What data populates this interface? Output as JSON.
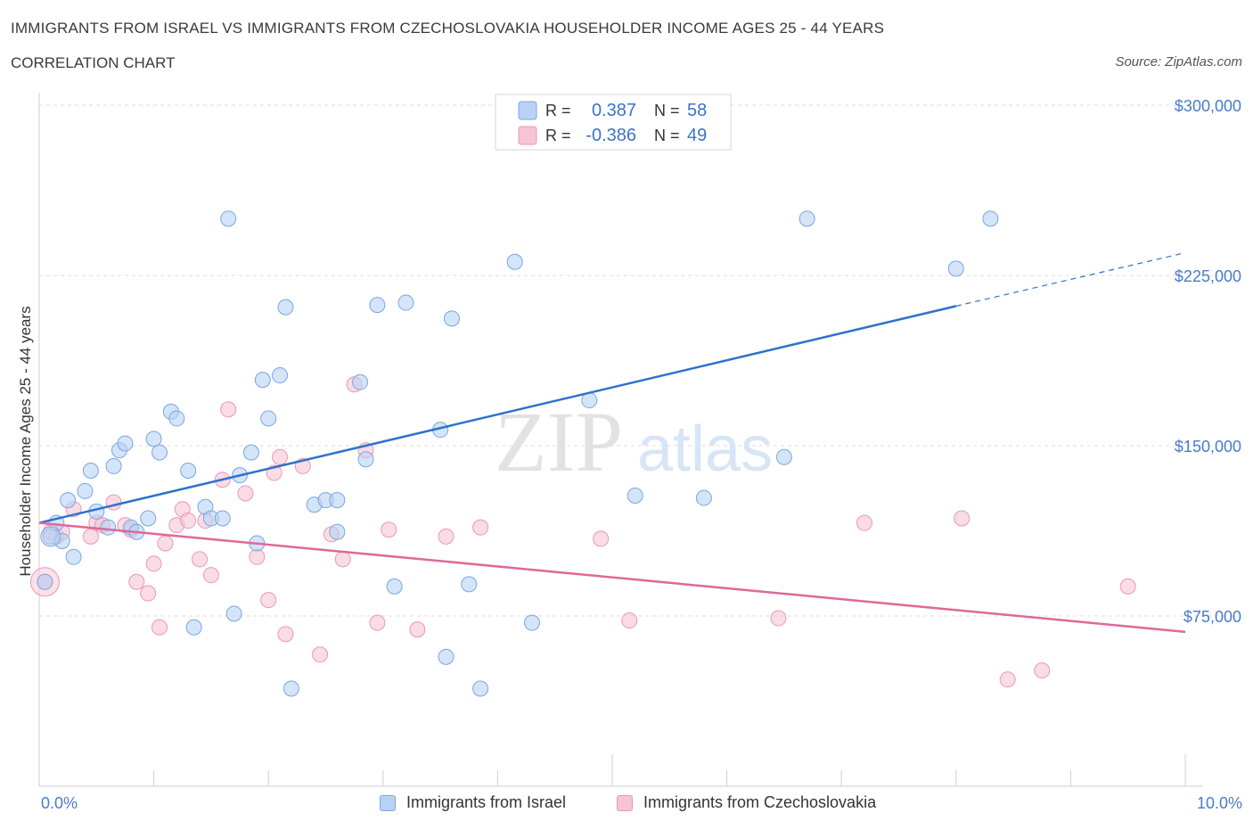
{
  "header": {
    "title": "IMMIGRANTS FROM ISRAEL VS IMMIGRANTS FROM CZECHOSLOVAKIA HOUSEHOLDER INCOME AGES 25 - 44 YEARS",
    "subtitle": "CORRELATION CHART",
    "source": "Source: ZipAtlas.com"
  },
  "watermark": {
    "zip": "ZIP",
    "atlas": "atlas"
  },
  "legend_top": {
    "rows": [
      {
        "r_label": "R =",
        "r_value": "0.387",
        "n_label": "N =",
        "n_value": "58"
      },
      {
        "r_label": "R =",
        "r_value": "-0.386",
        "n_label": "N =",
        "n_value": "49"
      }
    ]
  },
  "legend_bottom": {
    "items": [
      {
        "label": "Immigrants from Israel"
      },
      {
        "label": "Immigrants from Czechoslovakia"
      }
    ]
  },
  "colors": {
    "israel_fill": "#b8d2f5",
    "israel_stroke": "#7aa6e0",
    "israel_line": "#2e72cc",
    "czech_fill": "#f7c4d4",
    "czech_stroke": "#eb97b3",
    "czech_line": "#e0679a",
    "axis_text": "#4a7cc9",
    "grid": "#dddddd"
  },
  "chart_data": {
    "type": "scatter",
    "title": "IMMIGRANTS FROM ISRAEL VS IMMIGRANTS FROM CZECHOSLOVAKIA HOUSEHOLDER INCOME AGES 25 - 44 YEARS",
    "xlabel": "",
    "ylabel": "Householder Income Ages 25 - 44 years",
    "xlim": [
      0,
      10
    ],
    "ylim": [
      0,
      300000
    ],
    "x_tick_labels": [
      "0.0%",
      "10.0%"
    ],
    "y_ticks": [
      75000,
      150000,
      225000,
      300000
    ],
    "y_tick_labels": [
      "$75,000",
      "$150,000",
      "$225,000",
      "$300,000"
    ],
    "grid": true,
    "legend_position": "top-center",
    "series": [
      {
        "name": "Immigrants from Israel",
        "r": 0.387,
        "n": 58,
        "trend": {
          "x0": 0.0,
          "y0": 116000,
          "x1": 8.0,
          "y1": 211500,
          "dash_to_x": 10.0,
          "dash_to_y": 235000
        },
        "points": [
          [
            0.05,
            90000
          ],
          [
            0.1,
            110000
          ],
          [
            0.15,
            116000
          ],
          [
            0.2,
            108000
          ],
          [
            0.25,
            126000
          ],
          [
            0.3,
            101000
          ],
          [
            0.4,
            130000
          ],
          [
            0.45,
            139000
          ],
          [
            0.5,
            121000
          ],
          [
            0.6,
            114000
          ],
          [
            0.65,
            141000
          ],
          [
            0.7,
            148000
          ],
          [
            0.75,
            151000
          ],
          [
            0.8,
            114000
          ],
          [
            0.85,
            112000
          ],
          [
            0.95,
            118000
          ],
          [
            1.0,
            153000
          ],
          [
            1.05,
            147000
          ],
          [
            1.15,
            165000
          ],
          [
            1.2,
            162000
          ],
          [
            1.3,
            139000
          ],
          [
            1.35,
            70000
          ],
          [
            1.45,
            123000
          ],
          [
            1.5,
            118000
          ],
          [
            1.6,
            118000
          ],
          [
            1.7,
            76000
          ],
          [
            1.75,
            137000
          ],
          [
            1.65,
            250000
          ],
          [
            1.85,
            147000
          ],
          [
            1.9,
            107000
          ],
          [
            1.95,
            179000
          ],
          [
            2.0,
            162000
          ],
          [
            2.1,
            181000
          ],
          [
            2.15,
            211000
          ],
          [
            2.2,
            43000
          ],
          [
            2.4,
            124000
          ],
          [
            2.5,
            126000
          ],
          [
            2.6,
            112000
          ],
          [
            2.6,
            126000
          ],
          [
            2.8,
            178000
          ],
          [
            2.85,
            144000
          ],
          [
            2.95,
            212000
          ],
          [
            3.1,
            88000
          ],
          [
            3.2,
            213000
          ],
          [
            3.5,
            157000
          ],
          [
            3.55,
            57000
          ],
          [
            3.6,
            206000
          ],
          [
            3.75,
            89000
          ],
          [
            3.85,
            43000
          ],
          [
            4.15,
            231000
          ],
          [
            4.3,
            72000
          ],
          [
            4.8,
            170000
          ],
          [
            5.2,
            128000
          ],
          [
            5.8,
            127000
          ],
          [
            6.5,
            145000
          ],
          [
            6.7,
            250000
          ],
          [
            8.0,
            228000
          ],
          [
            8.3,
            250000
          ]
        ]
      },
      {
        "name": "Immigrants from Czechoslovakia",
        "r": -0.386,
        "n": 49,
        "trend": {
          "x0": 0.0,
          "y0": 116000,
          "x1": 10.0,
          "y1": 68000
        },
        "points": [
          [
            0.05,
            90000
          ],
          [
            0.15,
            110000
          ],
          [
            0.2,
            112000
          ],
          [
            0.3,
            122000
          ],
          [
            0.45,
            110000
          ],
          [
            0.5,
            116000
          ],
          [
            0.55,
            115000
          ],
          [
            0.65,
            125000
          ],
          [
            0.75,
            115000
          ],
          [
            0.8,
            113000
          ],
          [
            0.85,
            90000
          ],
          [
            0.95,
            85000
          ],
          [
            1.0,
            98000
          ],
          [
            1.05,
            70000
          ],
          [
            1.1,
            107000
          ],
          [
            1.2,
            115000
          ],
          [
            1.25,
            122000
          ],
          [
            1.3,
            117000
          ],
          [
            1.4,
            100000
          ],
          [
            1.45,
            117000
          ],
          [
            1.5,
            93000
          ],
          [
            1.6,
            135000
          ],
          [
            1.65,
            166000
          ],
          [
            1.8,
            129000
          ],
          [
            1.9,
            101000
          ],
          [
            2.0,
            82000
          ],
          [
            2.05,
            138000
          ],
          [
            2.1,
            145000
          ],
          [
            2.15,
            67000
          ],
          [
            2.3,
            141000
          ],
          [
            2.45,
            58000
          ],
          [
            2.55,
            111000
          ],
          [
            2.65,
            100000
          ],
          [
            2.75,
            177000
          ],
          [
            2.85,
            148000
          ],
          [
            2.95,
            72000
          ],
          [
            3.05,
            113000
          ],
          [
            3.3,
            69000
          ],
          [
            3.55,
            110000
          ],
          [
            3.85,
            114000
          ],
          [
            4.9,
            109000
          ],
          [
            5.15,
            73000
          ],
          [
            6.45,
            74000
          ],
          [
            7.2,
            116000
          ],
          [
            8.05,
            118000
          ],
          [
            8.45,
            47000
          ],
          [
            8.75,
            51000
          ],
          [
            9.5,
            88000
          ],
          [
            0.1,
            112000
          ]
        ]
      }
    ]
  }
}
